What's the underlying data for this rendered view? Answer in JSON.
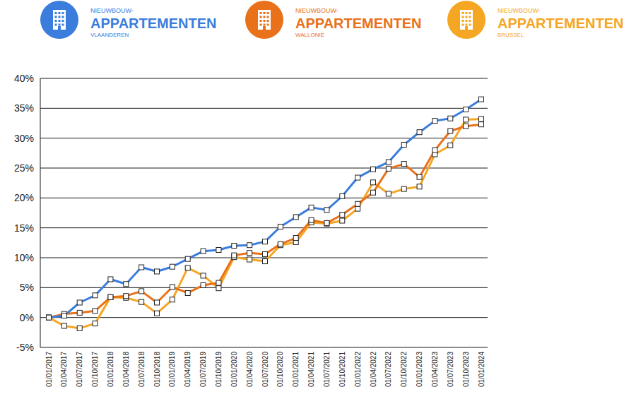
{
  "chart_data": {
    "type": "line",
    "legend_title": [
      "NIEUWBOUW-",
      "APPARTEMENTEN"
    ],
    "legend": "top",
    "grid": true,
    "marker": "square",
    "categories": [
      "01/01/2017",
      "01/04/2017",
      "01/07/2017",
      "01/10/2017",
      "01/01/2018",
      "01/04/2018",
      "01/07/2018",
      "01/10/2018",
      "01/01/2019",
      "01/04/2019",
      "01/07/2019",
      "01/10/2019",
      "01/01/2020",
      "01/04/2020",
      "01/07/2020",
      "01/10/2020",
      "01/01/2021",
      "01/04/2021",
      "01/07/2021",
      "01/10/2021",
      "01/01/2022",
      "01/04/2022",
      "01/07/2022",
      "01/10/2022",
      "01/01/2023",
      "01/04/2023",
      "01/07/2023",
      "01/10/2023",
      "01/01/2024"
    ],
    "ylim": [
      -5,
      40
    ],
    "yticks": [
      {
        "value": -5,
        "label": "-5%"
      },
      {
        "value": 0,
        "label": "0%"
      },
      {
        "value": 5,
        "label": "5%"
      },
      {
        "value": 10,
        "label": "10%"
      },
      {
        "value": 15,
        "label": "15%"
      },
      {
        "value": 20,
        "label": "20%"
      },
      {
        "value": 25,
        "label": "25%"
      },
      {
        "value": 30,
        "label": "30%"
      },
      {
        "value": 35,
        "label": "35%"
      },
      {
        "value": 40,
        "label": "40%"
      }
    ],
    "series": [
      {
        "name": "VLAANDEREN",
        "color": "#3b7ddd",
        "values": [
          0,
          0.3,
          2.5,
          3.7,
          6.4,
          5.6,
          8.4,
          7.7,
          8.5,
          9.8,
          11.1,
          11.3,
          12.0,
          12.1,
          12.7,
          15.2,
          16.8,
          18.4,
          18.0,
          20.3,
          23.4,
          24.8,
          26.0,
          28.9,
          31.0,
          32.9,
          33.3,
          34.8,
          36.5
        ]
      },
      {
        "name": "WALLONIË",
        "color": "#e8711a",
        "values": [
          0,
          0.6,
          0.8,
          1.1,
          3.4,
          3.6,
          4.4,
          2.5,
          5.1,
          4.1,
          5.4,
          5.8,
          10.4,
          10.8,
          10.6,
          12.3,
          13.3,
          16.3,
          15.8,
          17.2,
          19.0,
          20.9,
          24.9,
          25.7,
          23.5,
          28.0,
          31.2,
          32.0,
          32.3
        ]
      },
      {
        "name": "BRUSSEL",
        "color": "#f5a623",
        "values": [
          0,
          -1.4,
          -1.8,
          -1.0,
          3.4,
          3.3,
          2.6,
          0.7,
          3.0,
          8.3,
          7.0,
          4.9,
          10.1,
          9.7,
          9.4,
          12.1,
          12.6,
          15.9,
          15.7,
          16.2,
          18.2,
          22.6,
          20.7,
          21.5,
          21.9,
          27.3,
          28.8,
          33.1,
          33.2
        ]
      }
    ]
  }
}
